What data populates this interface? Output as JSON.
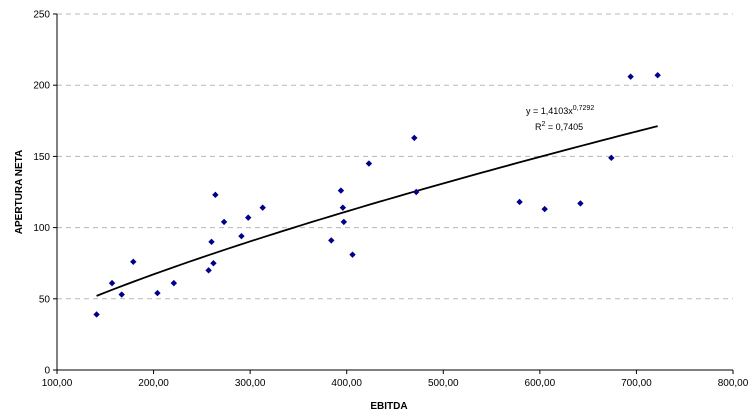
{
  "chart_data": {
    "type": "scatter",
    "xlabel": "EBITDA",
    "ylabel": "APERTURA NETA",
    "xlim": [
      100,
      800
    ],
    "ylim": [
      0,
      250
    ],
    "x_ticks": [
      "100,00",
      "200,00",
      "300,00",
      "400,00",
      "500,00",
      "600,00",
      "700,00",
      "800,00"
    ],
    "y_ticks": [
      "0",
      "50",
      "100",
      "150",
      "200",
      "250"
    ],
    "grid": "horizontal-dashed",
    "marker_color": "#00008B",
    "trendline_color": "#000000",
    "trendline": {
      "type": "power",
      "coefficient": 1.4103,
      "exponent": 0.7292,
      "x_range": [
        141,
        722
      ],
      "equation_prefix": "y = 1,4103x",
      "equation_exponent": "0,7292",
      "r2_prefix": "R",
      "r2_sup": "2",
      "r2_suffix": " = 0,7405"
    },
    "points": [
      {
        "x": 141,
        "y": 39
      },
      {
        "x": 157,
        "y": 61
      },
      {
        "x": 167,
        "y": 53
      },
      {
        "x": 179,
        "y": 76
      },
      {
        "x": 204,
        "y": 54
      },
      {
        "x": 221,
        "y": 61
      },
      {
        "x": 257,
        "y": 70
      },
      {
        "x": 260,
        "y": 90
      },
      {
        "x": 262,
        "y": 75
      },
      {
        "x": 264,
        "y": 123
      },
      {
        "x": 273,
        "y": 104
      },
      {
        "x": 291,
        "y": 94
      },
      {
        "x": 298,
        "y": 107
      },
      {
        "x": 313,
        "y": 114
      },
      {
        "x": 384,
        "y": 91
      },
      {
        "x": 394,
        "y": 126
      },
      {
        "x": 396,
        "y": 114
      },
      {
        "x": 397,
        "y": 104
      },
      {
        "x": 406,
        "y": 81
      },
      {
        "x": 423,
        "y": 145
      },
      {
        "x": 470,
        "y": 163
      },
      {
        "x": 472,
        "y": 125
      },
      {
        "x": 579,
        "y": 118
      },
      {
        "x": 605,
        "y": 113
      },
      {
        "x": 642,
        "y": 117
      },
      {
        "x": 674,
        "y": 149
      },
      {
        "x": 694,
        "y": 206
      },
      {
        "x": 722,
        "y": 207
      }
    ]
  }
}
